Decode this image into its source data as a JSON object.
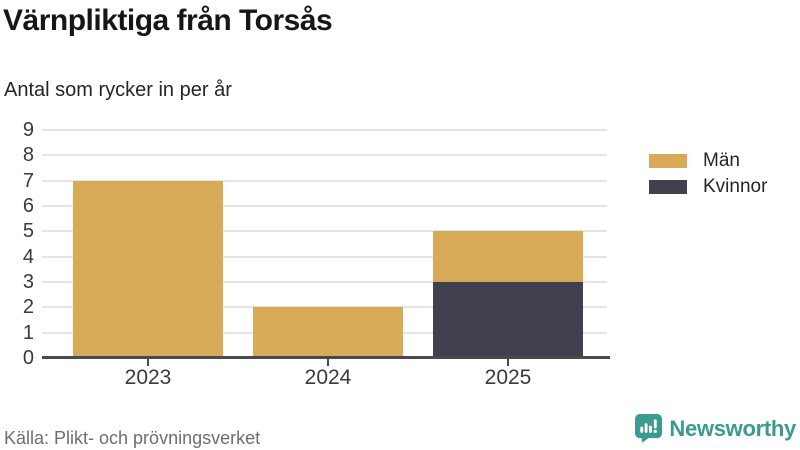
{
  "header": {
    "title": "Värnpliktiga från Torsås",
    "subtitle": "Antal som rycker in per år"
  },
  "chart_data": {
    "type": "bar",
    "stacked": true,
    "title": "Värnpliktiga från Torsås",
    "subtitle": "Antal som rycker in per år",
    "categories": [
      "2023",
      "2024",
      "2025"
    ],
    "series": [
      {
        "name": "Män",
        "color": "#d8aa58",
        "values": [
          7,
          2,
          2
        ]
      },
      {
        "name": "Kvinnor",
        "color": "#41404f",
        "values": [
          0,
          0,
          3
        ]
      }
    ],
    "stack_totals": [
      7,
      2,
      5
    ],
    "xlabel": "",
    "ylabel": "",
    "ylim": [
      0,
      9
    ],
    "ytick_step": 1,
    "yticks": [
      0,
      1,
      2,
      3,
      4,
      5,
      6,
      7,
      8,
      9
    ],
    "grid": true,
    "legend_position": "right"
  },
  "footer": {
    "source": "Källa: Plikt- och prövningsverket"
  },
  "brand": {
    "name": "Newsworthy",
    "icon": "bar-chart-speech-bubble-icon",
    "color": "#3a9b8e"
  },
  "colors": {
    "axis": "#4a4a4a",
    "gridline": "#e4e4e4",
    "title_text": "#14171a",
    "tick_text": "#3a3a3a",
    "muted_text": "#6e6e6e",
    "men": "#d8aa58",
    "women": "#41404f",
    "background": "#ffffff"
  }
}
